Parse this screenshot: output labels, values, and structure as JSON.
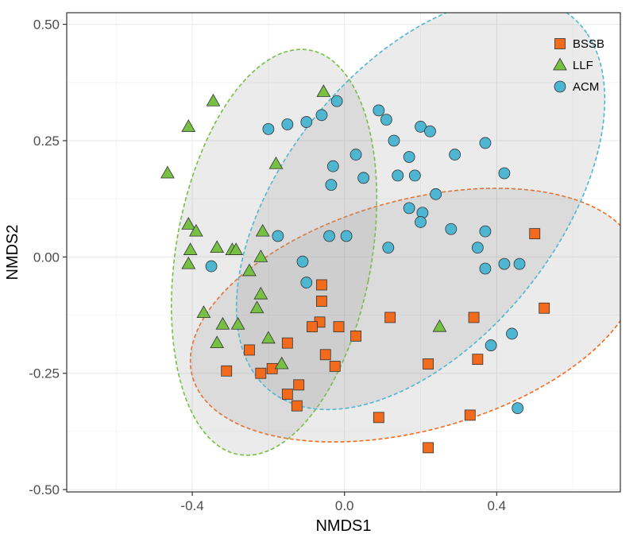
{
  "chart_data": {
    "type": "scatter",
    "title": "",
    "xlabel": "NMDS1",
    "ylabel": "NMDS2",
    "xlim": [
      -0.73,
      0.725
    ],
    "ylim": [
      -0.505,
      0.525
    ],
    "x_ticks": [
      -0.4,
      0.0,
      0.4
    ],
    "x_tick_labels": [
      "-0.4",
      "0.0",
      "0.4"
    ],
    "y_ticks": [
      -0.5,
      -0.25,
      0.0,
      0.25,
      0.5
    ],
    "y_tick_labels": [
      "-0.50",
      "-0.25",
      "0.00",
      "0.25",
      "0.50"
    ],
    "grid": true,
    "legend_position": "top-right",
    "series": [
      {
        "name": "BSSB",
        "marker": "square",
        "color": "#f26b1d",
        "ellipse": {
          "cx": 0.185,
          "cy": -0.125,
          "rx": 0.6,
          "ry": 0.25,
          "angle_deg": 11.5
        },
        "points": [
          [
            0.5,
            0.05
          ],
          [
            0.525,
            -0.11
          ],
          [
            0.34,
            -0.13
          ],
          [
            0.35,
            -0.22
          ],
          [
            0.22,
            -0.23
          ],
          [
            0.33,
            -0.34
          ],
          [
            0.22,
            -0.41
          ],
          [
            0.09,
            -0.345
          ],
          [
            0.12,
            -0.13
          ],
          [
            0.03,
            -0.17
          ],
          [
            -0.015,
            -0.15
          ],
          [
            -0.06,
            -0.06
          ],
          [
            -0.06,
            -0.095
          ],
          [
            -0.065,
            -0.14
          ],
          [
            -0.085,
            -0.15
          ],
          [
            -0.05,
            -0.21
          ],
          [
            -0.025,
            -0.235
          ],
          [
            -0.15,
            -0.185
          ],
          [
            -0.19,
            -0.24
          ],
          [
            -0.22,
            -0.25
          ],
          [
            -0.25,
            -0.2
          ],
          [
            -0.31,
            -0.245
          ],
          [
            -0.15,
            -0.295
          ],
          [
            -0.12,
            -0.275
          ],
          [
            -0.125,
            -0.32
          ]
        ]
      },
      {
        "name": "LLF",
        "marker": "triangle",
        "color": "#76c043",
        "ellipse": {
          "cx": -0.185,
          "cy": 0.01,
          "rx": 0.255,
          "ry": 0.445,
          "angle_deg": -14
        },
        "points": [
          [
            -0.465,
            0.18
          ],
          [
            -0.41,
            0.28
          ],
          [
            -0.345,
            0.335
          ],
          [
            -0.055,
            0.355
          ],
          [
            -0.18,
            0.2
          ],
          [
            -0.41,
            0.07
          ],
          [
            -0.39,
            0.055
          ],
          [
            -0.405,
            0.015
          ],
          [
            -0.41,
            -0.015
          ],
          [
            -0.335,
            0.02
          ],
          [
            -0.295,
            0.015
          ],
          [
            -0.285,
            0.015
          ],
          [
            -0.215,
            0.055
          ],
          [
            -0.22,
            0.0
          ],
          [
            -0.25,
            -0.03
          ],
          [
            -0.22,
            -0.08
          ],
          [
            -0.23,
            -0.11
          ],
          [
            -0.37,
            -0.12
          ],
          [
            -0.32,
            -0.145
          ],
          [
            -0.28,
            -0.145
          ],
          [
            -0.2,
            -0.175
          ],
          [
            -0.335,
            -0.185
          ],
          [
            -0.165,
            -0.23
          ],
          [
            0.25,
            -0.15
          ]
        ]
      },
      {
        "name": "ACM",
        "marker": "circle",
        "color": "#4fb6d2",
        "ellipse": {
          "cx": 0.2,
          "cy": 0.115,
          "rx": 0.57,
          "ry": 0.325,
          "angle_deg": 40
        },
        "points": [
          [
            -0.2,
            0.275
          ],
          [
            -0.15,
            0.285
          ],
          [
            -0.1,
            0.29
          ],
          [
            -0.06,
            0.305
          ],
          [
            -0.02,
            0.335
          ],
          [
            0.09,
            0.315
          ],
          [
            0.11,
            0.295
          ],
          [
            0.13,
            0.25
          ],
          [
            0.2,
            0.28
          ],
          [
            0.225,
            0.27
          ],
          [
            0.17,
            0.215
          ],
          [
            0.03,
            0.22
          ],
          [
            -0.03,
            0.195
          ],
          [
            -0.035,
            0.155
          ],
          [
            0.05,
            0.17
          ],
          [
            0.14,
            0.175
          ],
          [
            0.185,
            0.175
          ],
          [
            0.24,
            0.135
          ],
          [
            0.29,
            0.22
          ],
          [
            0.37,
            0.245
          ],
          [
            0.42,
            0.18
          ],
          [
            0.17,
            0.105
          ],
          [
            0.205,
            0.095
          ],
          [
            0.2,
            0.075
          ],
          [
            0.28,
            0.06
          ],
          [
            0.37,
            0.055
          ],
          [
            0.35,
            0.02
          ],
          [
            0.37,
            -0.025
          ],
          [
            0.42,
            -0.015
          ],
          [
            0.46,
            -0.015
          ],
          [
            -0.175,
            0.045
          ],
          [
            -0.04,
            0.045
          ],
          [
            0.005,
            0.045
          ],
          [
            0.115,
            0.02
          ],
          [
            -0.11,
            -0.01
          ],
          [
            -0.1,
            -0.055
          ],
          [
            -0.35,
            -0.02
          ],
          [
            0.44,
            -0.165
          ],
          [
            0.385,
            -0.19
          ],
          [
            0.455,
            -0.325
          ]
        ]
      }
    ]
  }
}
